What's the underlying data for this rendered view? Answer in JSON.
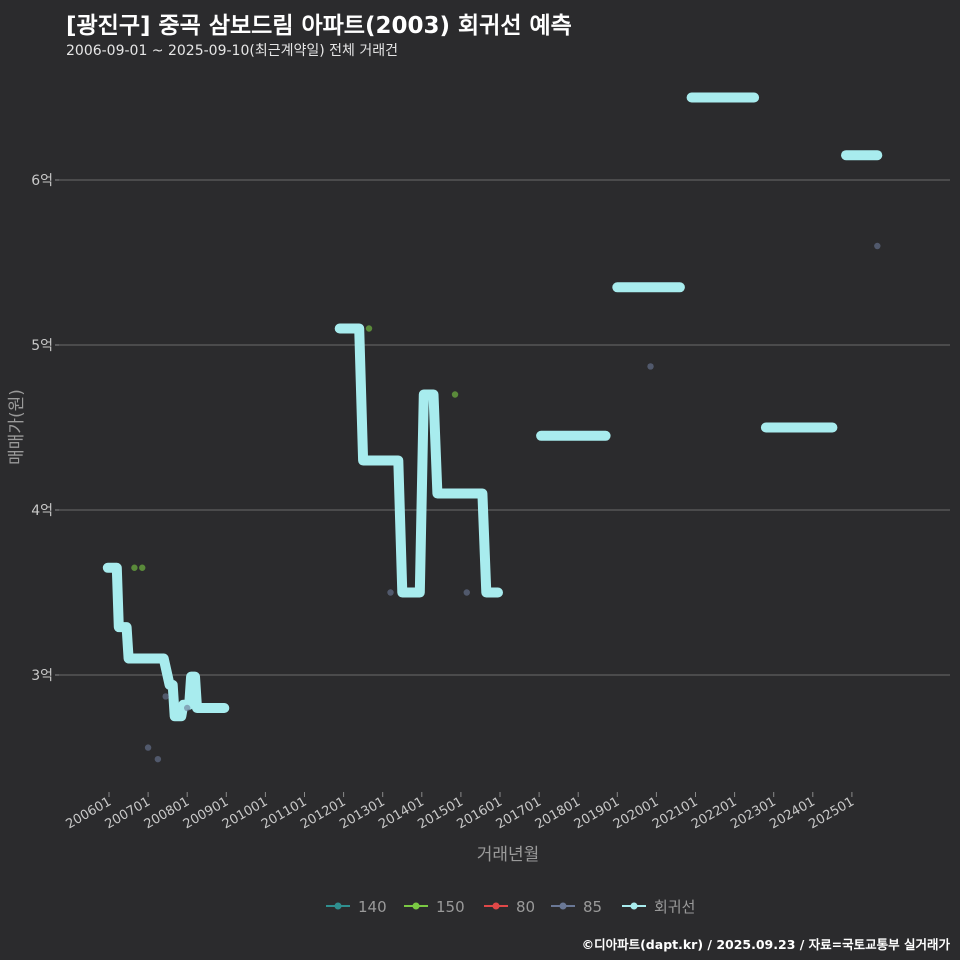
{
  "header": {
    "title": "[광진구] 중곡 삼보드림 아파트(2003) 회귀선 예측",
    "subtitle": "2006-09-01 ~ 2025-09-10(최근계약일) 전체 거래건"
  },
  "footer": {
    "credit": "©디아파트(dapt.kr) / 2025.09.23 / 자료=국토교통부 실거래가"
  },
  "chart_data": {
    "type": "scatter",
    "title": "[광진구] 중곡 삼보드림 아파트(2003) 회귀선 예측",
    "xlabel": "거래년월",
    "ylabel": "매매가(원)",
    "x_unit": "fractional year",
    "ylim": [
      2.4,
      6.9
    ],
    "y_unit": "억",
    "yticks": [
      {
        "value": 3,
        "label": "3억"
      },
      {
        "value": 4,
        "label": "4억"
      },
      {
        "value": 5,
        "label": "5억"
      },
      {
        "value": 6,
        "label": "6억"
      }
    ],
    "xticks": [
      {
        "value": 2006.0,
        "label": "200601"
      },
      {
        "value": 2007.0,
        "label": "200701"
      },
      {
        "value": 2008.0,
        "label": "200801"
      },
      {
        "value": 2009.0,
        "label": "200901"
      },
      {
        "value": 2010.0,
        "label": "201001"
      },
      {
        "value": 2011.0,
        "label": "201101"
      },
      {
        "value": 2012.0,
        "label": "201201"
      },
      {
        "value": 2013.0,
        "label": "201301"
      },
      {
        "value": 2014.0,
        "label": "201401"
      },
      {
        "value": 2015.0,
        "label": "201501"
      },
      {
        "value": 2016.0,
        "label": "201601"
      },
      {
        "value": 2017.0,
        "label": "201701"
      },
      {
        "value": 2018.0,
        "label": "201801"
      },
      {
        "value": 2019.0,
        "label": "201901"
      },
      {
        "value": 2020.0,
        "label": "202001"
      },
      {
        "value": 2021.0,
        "label": "202101"
      },
      {
        "value": 2022.0,
        "label": "202201"
      },
      {
        "value": 2023.0,
        "label": "202301"
      },
      {
        "value": 2024.0,
        "label": "202401"
      },
      {
        "value": 2025.0,
        "label": "202501"
      }
    ],
    "grid": "horizontal",
    "legend_position": "bottom",
    "series": [
      {
        "name": "140",
        "color": "#2f8f8f",
        "points": []
      },
      {
        "name": "150",
        "color": "#7ac943",
        "points": [
          {
            "x": 2006.65,
            "y": 3.65
          },
          {
            "x": 2006.85,
            "y": 3.65
          },
          {
            "x": 2012.65,
            "y": 5.1
          },
          {
            "x": 2014.85,
            "y": 4.7
          }
        ]
      },
      {
        "name": "80",
        "color": "#e04848",
        "points": []
      },
      {
        "name": "85",
        "color": "#6a7896",
        "points": [
          {
            "x": 2007.0,
            "y": 2.56
          },
          {
            "x": 2007.25,
            "y": 2.49
          },
          {
            "x": 2007.45,
            "y": 2.87
          },
          {
            "x": 2008.0,
            "y": 2.8
          },
          {
            "x": 2013.2,
            "y": 3.5
          },
          {
            "x": 2015.15,
            "y": 3.5
          },
          {
            "x": 2019.85,
            "y": 4.87
          },
          {
            "x": 2025.65,
            "y": 5.6
          }
        ]
      }
    ],
    "regression": {
      "name": "회귀선",
      "color": "#a8ecee",
      "segments": [
        [
          {
            "x": 2005.97,
            "y": 3.65
          },
          {
            "x": 2006.2,
            "y": 3.65
          },
          {
            "x": 2006.25,
            "y": 3.29
          },
          {
            "x": 2006.45,
            "y": 3.29
          },
          {
            "x": 2006.5,
            "y": 3.1
          },
          {
            "x": 2007.4,
            "y": 3.1
          },
          {
            "x": 2007.55,
            "y": 2.94
          },
          {
            "x": 2007.63,
            "y": 2.94
          },
          {
            "x": 2007.68,
            "y": 2.75
          },
          {
            "x": 2007.85,
            "y": 2.75
          },
          {
            "x": 2007.9,
            "y": 2.82
          },
          {
            "x": 2008.05,
            "y": 2.82
          },
          {
            "x": 2008.1,
            "y": 2.99
          },
          {
            "x": 2008.2,
            "y": 2.99
          },
          {
            "x": 2008.25,
            "y": 2.8
          },
          {
            "x": 2008.95,
            "y": 2.8
          }
        ],
        [
          {
            "x": 2011.9,
            "y": 5.1
          },
          {
            "x": 2012.4,
            "y": 5.1
          },
          {
            "x": 2012.5,
            "y": 4.3
          },
          {
            "x": 2013.4,
            "y": 4.3
          },
          {
            "x": 2013.5,
            "y": 3.5
          },
          {
            "x": 2013.95,
            "y": 3.5
          },
          {
            "x": 2014.05,
            "y": 4.7
          },
          {
            "x": 2014.3,
            "y": 4.7
          },
          {
            "x": 2014.4,
            "y": 4.1
          },
          {
            "x": 2015.55,
            "y": 4.1
          },
          {
            "x": 2015.65,
            "y": 3.5
          },
          {
            "x": 2015.95,
            "y": 3.5
          }
        ],
        [
          {
            "x": 2017.05,
            "y": 4.45
          },
          {
            "x": 2018.7,
            "y": 4.45
          }
        ],
        [
          {
            "x": 2019.0,
            "y": 5.35
          },
          {
            "x": 2020.6,
            "y": 5.35
          }
        ],
        [
          {
            "x": 2020.9,
            "y": 6.5
          },
          {
            "x": 2022.5,
            "y": 6.5
          }
        ],
        [
          {
            "x": 2022.8,
            "y": 4.5
          },
          {
            "x": 2024.5,
            "y": 4.5
          }
        ],
        [
          {
            "x": 2024.85,
            "y": 6.15
          },
          {
            "x": 2025.65,
            "y": 6.15
          }
        ]
      ]
    },
    "legend": [
      {
        "label": "140",
        "color": "#2f8f8f"
      },
      {
        "label": "150",
        "color": "#7ac943"
      },
      {
        "label": "80",
        "color": "#e04848"
      },
      {
        "label": "85",
        "color": "#6a7896"
      },
      {
        "label": "회귀선",
        "color": "#a8ecee"
      }
    ]
  }
}
